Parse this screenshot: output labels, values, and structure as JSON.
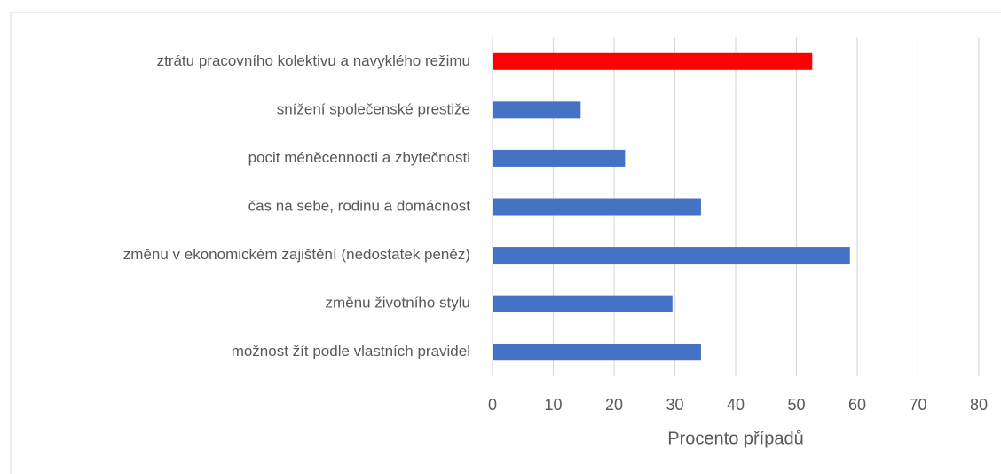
{
  "chart_data": {
    "type": "bar",
    "orientation": "horizontal",
    "categories": [
      "ztrátu pracovního kolektivu a navyklého režimu",
      "snížení společenské prestiže",
      "pocit méněcennocti a zbytečnosti",
      "čas na sebe, rodinu a domácnost",
      "změnu v ekonomickém zajištění (nedostatek peněz)",
      "změnu životního stylu",
      "možnost žít podle vlastních pravidel"
    ],
    "values": [
      52.6,
      14.5,
      21.8,
      34.3,
      58.8,
      29.6,
      34.3
    ],
    "colors": [
      "#ff0000",
      "#4472c4",
      "#4472c4",
      "#4472c4",
      "#4472c4",
      "#4472c4",
      "#4472c4"
    ],
    "xlabel": "Procento případů",
    "xlim": [
      0,
      80
    ],
    "xticks": [
      0,
      10,
      20,
      30,
      40,
      50,
      60,
      70,
      80
    ],
    "grid": true
  }
}
